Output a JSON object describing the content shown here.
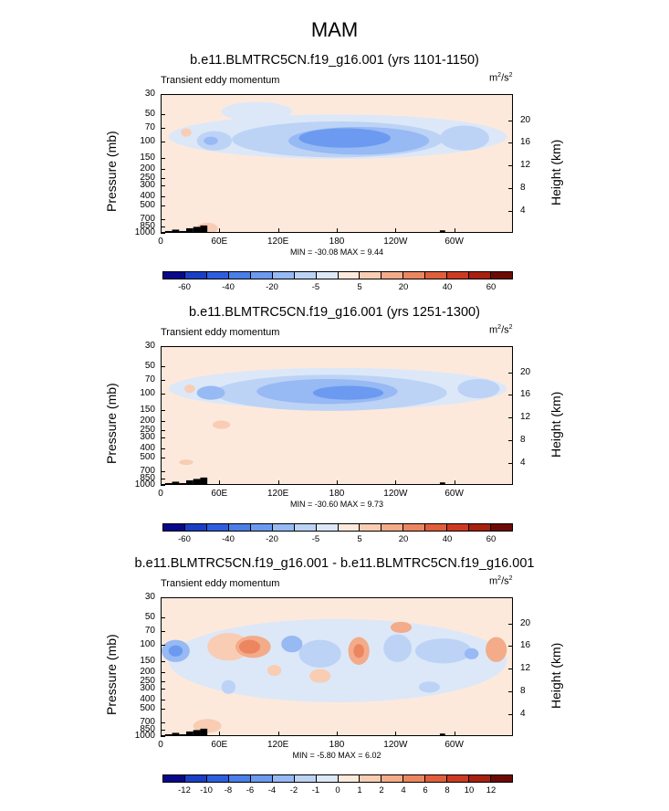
{
  "figure": {
    "title": "MAM"
  },
  "chart_data": [
    {
      "type": "heatmap",
      "title": "b.e11.BLMTRC5CN.f19_g16.001 (yrs 1101-1150)",
      "subtitle": "Transient eddy momentum",
      "units": "m",
      "units_sup1": "2",
      "units_mid": "/s",
      "units_sup2": "2",
      "ylabel": "Pressure (mb)",
      "ylabel_right": "Height (km)",
      "y_ticks": [
        "30",
        "50",
        "70",
        "100",
        "150",
        "200",
        "250",
        "300",
        "400",
        "500",
        "700",
        "850",
        "1000"
      ],
      "y_right_ticks": [
        "20",
        "16",
        "12",
        "8",
        "4"
      ],
      "x_ticks": [
        "0",
        "60E",
        "120E",
        "180",
        "120W",
        "60W"
      ],
      "stats": "MIN = -30.08   MAX =   9.44",
      "min": -30.08,
      "max": 9.44,
      "colorbar_ticks": [
        "-60",
        "-40",
        "-20",
        "-5",
        "5",
        "20",
        "40",
        "60"
      ]
    },
    {
      "type": "heatmap",
      "title": "b.e11.BLMTRC5CN.f19_g16.001 (yrs 1251-1300)",
      "subtitle": "Transient eddy momentum",
      "units": "m",
      "units_sup1": "2",
      "units_mid": "/s",
      "units_sup2": "2",
      "ylabel": "Pressure (mb)",
      "ylabel_right": "Height (km)",
      "y_ticks": [
        "30",
        "50",
        "70",
        "100",
        "150",
        "200",
        "250",
        "300",
        "400",
        "500",
        "700",
        "850",
        "1000"
      ],
      "y_right_ticks": [
        "20",
        "16",
        "12",
        "8",
        "4"
      ],
      "x_ticks": [
        "0",
        "60E",
        "120E",
        "180",
        "120W",
        "60W"
      ],
      "stats": "MIN = -30.60   MAX =   9.73",
      "min": -30.6,
      "max": 9.73,
      "colorbar_ticks": [
        "-60",
        "-40",
        "-20",
        "-5",
        "5",
        "20",
        "40",
        "60"
      ]
    },
    {
      "type": "heatmap",
      "title": "b.e11.BLMTRC5CN.f19_g16.001 - b.e11.BLMTRC5CN.f19_g16.001",
      "subtitle": "Transient eddy momentum",
      "units": "m",
      "units_sup1": "2",
      "units_mid": "/s",
      "units_sup2": "2",
      "ylabel": "Pressure (mb)",
      "ylabel_right": "Height (km)",
      "y_ticks": [
        "30",
        "50",
        "70",
        "100",
        "150",
        "200",
        "250",
        "300",
        "400",
        "500",
        "700",
        "850",
        "1000"
      ],
      "y_right_ticks": [
        "20",
        "16",
        "12",
        "8",
        "4"
      ],
      "x_ticks": [
        "0",
        "60E",
        "120E",
        "180",
        "120W",
        "60W"
      ],
      "stats": "MIN =  -5.80   MAX =   6.02",
      "min": -5.8,
      "max": 6.02,
      "colorbar_ticks": [
        "-12",
        "-10",
        "-8",
        "-6",
        "-4",
        "-2",
        "-1",
        "0",
        "1",
        "2",
        "4",
        "6",
        "8",
        "10",
        "12"
      ]
    }
  ],
  "colors": {
    "ramp16": [
      "#08088a",
      "#1a3fc6",
      "#2e5ee0",
      "#4a7ee8",
      "#6b9af0",
      "#97b9f4",
      "#bcd3f6",
      "#dce8f8",
      "#fde9dc",
      "#f8cdb4",
      "#f3ab89",
      "#ec8660",
      "#e15e3c",
      "#cd3a22",
      "#a8200f",
      "#6e0a05"
    ],
    "bg": "#fde9dc",
    "topo": "#000000"
  }
}
